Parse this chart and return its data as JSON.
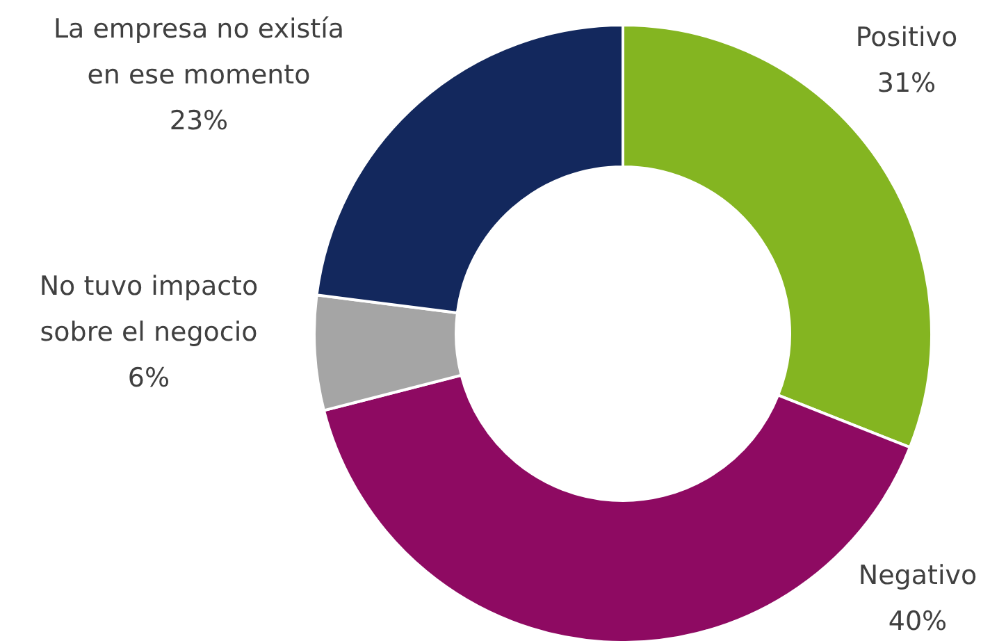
{
  "chart_data": {
    "type": "donut",
    "categories": [
      "Positivo",
      "Negativo",
      "No tuvo impacto sobre el negocio",
      "La empresa no existía en ese momento"
    ],
    "values": [
      31,
      40,
      6,
      23
    ],
    "colors": [
      "#84b521",
      "#8e0a62",
      "#a5a5a5",
      "#13285d"
    ],
    "value_labels": [
      "31%",
      "40%",
      "6%",
      "23%"
    ]
  }
}
